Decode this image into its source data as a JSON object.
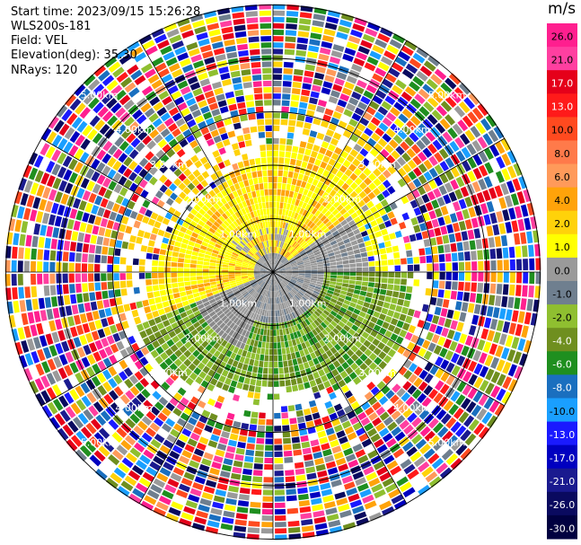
{
  "header": {
    "start_time": "Start time: 2023/09/15 15:26:28",
    "instrument": "WLS200s-181",
    "field": "Field: VEL",
    "elevation": "Elevation(deg): 35.30",
    "nrays": "NRays: 120"
  },
  "colorbar": {
    "unit": "m/s",
    "ticks": [
      "26.0",
      "21.0",
      "17.0",
      "13.0",
      "10.0",
      "8.0",
      "6.0",
      "4.0",
      "2.0",
      "1.0",
      "0.0",
      "-1.0",
      "-2.0",
      "-4.0",
      "-6.0",
      "-8.0",
      "-10.0",
      "-13.0",
      "-17.0",
      "-21.0",
      "-26.0",
      "-30.0"
    ],
    "colors": [
      "#ff1f8f",
      "#ff3fa0",
      "#e5001a",
      "#ff1a1a",
      "#ff4a1f",
      "#ff7a4a",
      "#ff9a5a",
      "#ffa30a",
      "#ffd20a",
      "#ffff00",
      "#9a9a9a",
      "#6f7f8f",
      "#8fbf30",
      "#6f8f1f",
      "#1f8f1f",
      "#1a6fbf",
      "#1a9fff",
      "#1a1aff",
      "#0000c0",
      "#1a1a8f",
      "#0a0a5f",
      "#000040"
    ]
  },
  "chart_data": {
    "type": "heatmap",
    "projection": "polar PPI",
    "field": "VEL",
    "units": "m/s",
    "nrays": 120,
    "range_rings_km": [
      1.0,
      2.0,
      3.0,
      4.0,
      5.0
    ],
    "range_ring_labels": [
      "1.00km",
      "2.00km",
      "3.00km",
      "4.00km",
      "5.00km"
    ],
    "max_range_km": 5.0,
    "color_scale": [
      -30.0,
      26.0
    ],
    "regions": [
      {
        "description": "positive (yellow/orange) velocities",
        "azimuth_deg_from": 240,
        "azimuth_deg_to": 60,
        "range_km": [
          0.3,
          2.6
        ],
        "value_m_s": 2.5
      },
      {
        "description": "near-zero (gray) velocities",
        "azimuth_deg_from": 60,
        "azimuth_deg_to": 240,
        "range_km": [
          0.0,
          1.0
        ],
        "value_m_s": 0.0
      },
      {
        "description": "negative (green) velocities",
        "azimuth_deg_from": 90,
        "azimuth_deg_to": 250,
        "range_km": [
          1.0,
          2.7
        ],
        "value_m_s": -3.0
      },
      {
        "description": "noise (random colors)",
        "range_km": [
          2.7,
          5.0
        ],
        "value_m_s": "random"
      }
    ]
  }
}
